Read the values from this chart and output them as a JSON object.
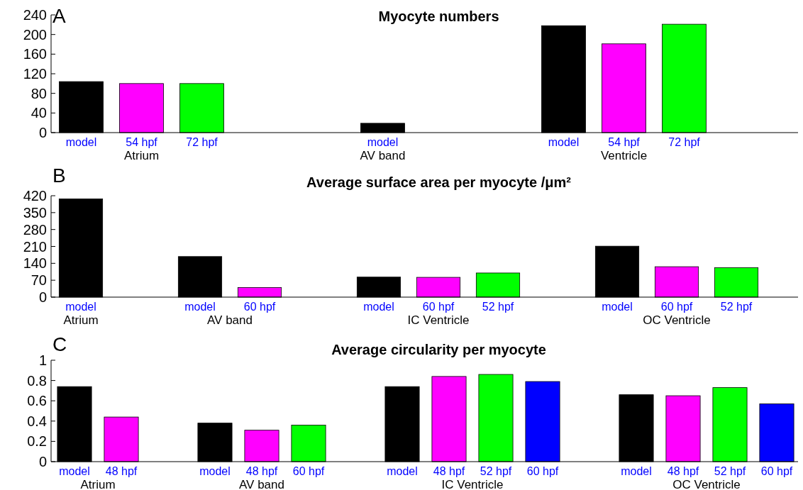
{
  "chart_data": [
    {
      "type": "bar",
      "title": "Myocyte numbers",
      "categories": [
        "model",
        "54 hpf",
        "72 hpf",
        null,
        null,
        "model",
        null,
        null,
        "model",
        "54 hpf",
        "72 hpf"
      ],
      "values": [
        104,
        100,
        100,
        null,
        null,
        19,
        null,
        null,
        218,
        181,
        221
      ],
      "colors": [
        "#000000",
        "#ff00ff",
        "#00ff00",
        null,
        null,
        "#000000",
        null,
        null,
        "#000000",
        "#ff00ff",
        "#00ff00"
      ],
      "ylim": [
        0,
        240
      ],
      "yticks": [
        0,
        40,
        80,
        120,
        160,
        200,
        240
      ],
      "grid": false,
      "annotations": [
        "A",
        "Atrium",
        "AV band",
        "Ventricle"
      ]
    },
    {
      "type": "bar",
      "title": "Average surface area per myocyte /μm²",
      "categories": [
        "model",
        null,
        "model",
        "60 hpf",
        null,
        "model",
        "60 hpf",
        "52 hpf",
        null,
        "model",
        "60 hpf",
        "52 hpf"
      ],
      "values": [
        407,
        null,
        168,
        40,
        null,
        83,
        82,
        100,
        null,
        211,
        126,
        122
      ],
      "colors": [
        "#000000",
        null,
        "#000000",
        "#ff00ff",
        null,
        "#000000",
        "#ff00ff",
        "#00ff00",
        null,
        "#000000",
        "#ff00ff",
        "#00ff00"
      ],
      "ylim": [
        0,
        420
      ],
      "yticks": [
        0,
        70,
        140,
        210,
        280,
        350,
        420
      ],
      "grid": false,
      "annotations": [
        "B",
        "Atrium",
        "AV band",
        "IC Ventricle",
        "OC Ventricle"
      ]
    },
    {
      "type": "bar",
      "title": "Average circularity per myocyte",
      "categories": [
        "model",
        "48 hpf",
        null,
        "model",
        "48 hpf",
        "60 hpf",
        null,
        "model",
        "48 hpf",
        "52 hpf",
        "60 hpf",
        null,
        "model",
        "48 hpf",
        "52 hpf",
        "60 hpf"
      ],
      "values": [
        0.74,
        0.44,
        null,
        0.38,
        0.31,
        0.36,
        null,
        0.74,
        0.84,
        0.86,
        0.79,
        null,
        0.66,
        0.65,
        0.73,
        0.57
      ],
      "colors": [
        "#000000",
        "#ff00ff",
        null,
        "#000000",
        "#ff00ff",
        "#00ff00",
        null,
        "#000000",
        "#ff00ff",
        "#00ff00",
        "#0000ff",
        null,
        "#000000",
        "#ff00ff",
        "#00ff00",
        "#0000ff"
      ],
      "ylim": [
        0,
        1
      ],
      "yticks": [
        0,
        0.2,
        0.4,
        0.6,
        0.8,
        1
      ],
      "grid": false,
      "annotations": [
        "C",
        "Atrium",
        "AV band",
        "IC Ventricle",
        "OC Ventricle"
      ]
    }
  ]
}
